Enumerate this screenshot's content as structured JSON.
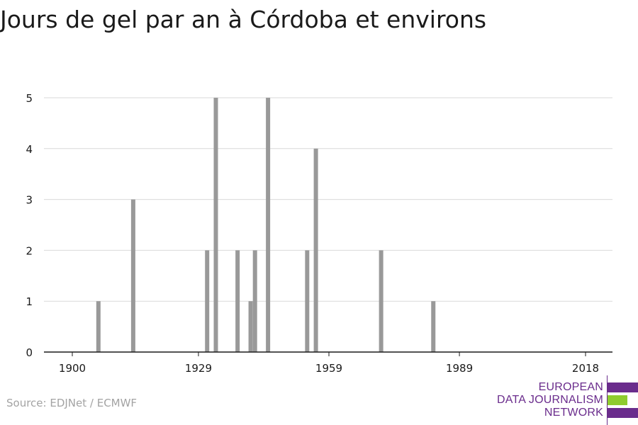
{
  "title": "Jours de gel par an à Córdoba et environs",
  "source": "Source: EDJNet / ECMWF",
  "logo": {
    "lines": [
      "EUROPEAN",
      "DATA JOURNALISM",
      "NETWORK"
    ],
    "purple": "#6a2c8c",
    "green": "#8fcc2e"
  },
  "chart_data": {
    "type": "bar",
    "title": "Jours de gel par an à Córdoba et environs",
    "xlabel": "",
    "ylabel": "",
    "xlim": [
      1900,
      2018
    ],
    "ylim": [
      0,
      5
    ],
    "xticks": [
      1900,
      1929,
      1959,
      1989,
      2018
    ],
    "yticks": [
      0,
      1,
      2,
      3,
      4,
      5
    ],
    "grid": true,
    "bar_color": "#999999",
    "x": [
      1906,
      1914,
      1931,
      1933,
      1938,
      1941,
      1942,
      1945,
      1954,
      1956,
      1971,
      1983
    ],
    "values": [
      1,
      3,
      2,
      5,
      2,
      1,
      2,
      5,
      2,
      4,
      2,
      1
    ]
  }
}
